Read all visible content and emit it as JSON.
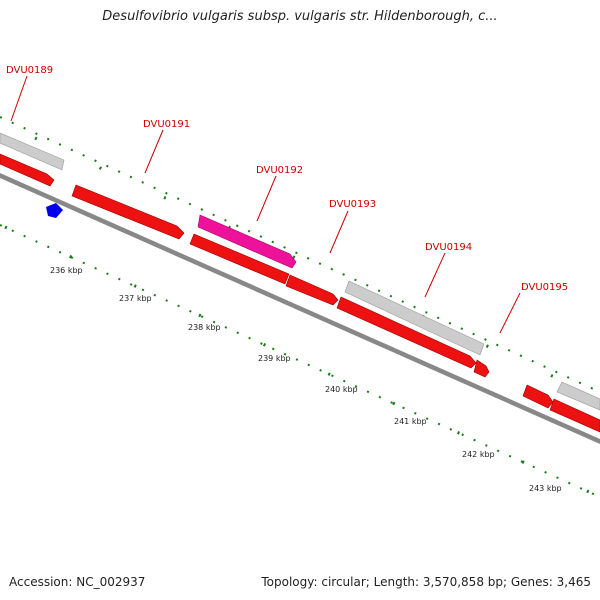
{
  "title": "Desulfovibrio vulgaris subsp. vulgaris str. Hildenborough, c...",
  "footer": {
    "accession": "Accession: NC_002937",
    "summary": "Topology: circular; Length: 3,570,858 bp; Genes: 3,465"
  },
  "colors": {
    "gene_red": "#ee1111",
    "gene_magenta": "#ee1199",
    "gene_gray": "#cccccc",
    "backbone": "#888888",
    "tick_green": "#1a7a1a",
    "label_red": "#cc0000",
    "feature_blue": "#0000ee"
  },
  "gene_labels": [
    "DVU0189",
    "DVU0191",
    "DVU0192",
    "DVU0193",
    "DVU0194",
    "DVU0195"
  ],
  "kbp_ticks": [
    "236 kbp",
    "237 kbp",
    "238 kbp",
    "239 kbp",
    "240 kbp",
    "241 kbp",
    "242 kbp",
    "243 kbp"
  ]
}
